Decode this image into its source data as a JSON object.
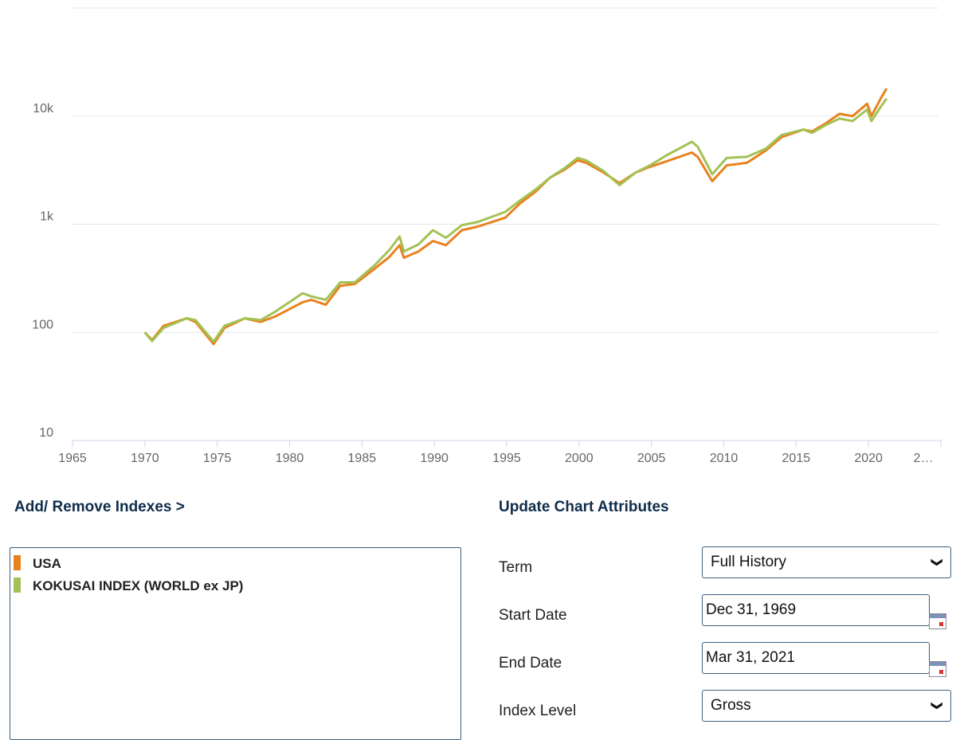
{
  "chart_data": {
    "type": "line",
    "log_scale": true,
    "grid": true,
    "xlim": [
      1965,
      2025
    ],
    "xticks": [
      1965,
      1970,
      1975,
      1980,
      1985,
      1990,
      1995,
      2000,
      2005,
      2010,
      2015,
      2020,
      {
        "value": 2025,
        "label": "2…"
      }
    ],
    "ylim": [
      10,
      100000
    ],
    "yticks": [
      {
        "value": 10,
        "label": "10"
      },
      {
        "value": 100,
        "label": "100"
      },
      {
        "value": 1000,
        "label": "1k"
      },
      {
        "value": 10000,
        "label": "10k"
      }
    ],
    "x": [
      1969.99,
      1970.5,
      1971.3,
      1972.9,
      1973.5,
      1974.75,
      1975.5,
      1976.9,
      1978.0,
      1979.0,
      1980.9,
      1981.5,
      1982.5,
      1983.5,
      1984.5,
      1985.9,
      1986.9,
      1987.6,
      1987.9,
      1988.9,
      1989.9,
      1990.8,
      1991.9,
      1993.0,
      1994.9,
      1995.9,
      1997.0,
      1998.0,
      1999.0,
      1999.9,
      2000.5,
      2001.7,
      2002.8,
      2003.9,
      2004.9,
      2006.0,
      2007.8,
      2008.2,
      2009.2,
      2010.2,
      2011.6,
      2012.9,
      2014.0,
      2015.5,
      2016.1,
      2017.0,
      2018.0,
      2018.9,
      2019.9,
      2020.2,
      2020.9,
      2021.25
    ],
    "series": [
      {
        "name": "USA",
        "color": "#e8821e",
        "values": [
          100,
          85,
          115,
          135,
          125,
          78,
          110,
          135,
          125,
          140,
          190,
          200,
          180,
          270,
          280,
          390,
          500,
          640,
          490,
          560,
          700,
          640,
          880,
          950,
          1150,
          1550,
          2000,
          2700,
          3200,
          3900,
          3700,
          3000,
          2400,
          3000,
          3400,
          3800,
          4600,
          4200,
          2500,
          3500,
          3700,
          4800,
          6400,
          7500,
          7200,
          8500,
          10500,
          10000,
          13000,
          10000,
          15000,
          18000
        ]
      },
      {
        "name": "KOKUSAI INDEX (WORLD ex JP)",
        "color": "#a3c255",
        "values": [
          100,
          83,
          110,
          135,
          130,
          82,
          115,
          135,
          130,
          155,
          230,
          215,
          200,
          290,
          290,
          420,
          580,
          770,
          560,
          650,
          880,
          750,
          980,
          1050,
          1300,
          1650,
          2100,
          2700,
          3300,
          4100,
          3900,
          3100,
          2300,
          3000,
          3500,
          4300,
          5800,
          5200,
          2900,
          4100,
          4200,
          5000,
          6700,
          7500,
          7000,
          8200,
          9500,
          9000,
          11500,
          9000,
          12500,
          14500
        ]
      }
    ]
  },
  "panels": {
    "indexes_heading": "Add/ Remove Indexes >",
    "attributes_heading": "Update Chart Attributes",
    "form": [
      {
        "label": "Term",
        "value": "Full History"
      },
      {
        "label": "Start Date",
        "value": "Dec 31, 1969"
      },
      {
        "label": "End Date",
        "value": "Mar 31, 2021"
      },
      {
        "label": "Index Level",
        "value": "Gross"
      }
    ]
  }
}
